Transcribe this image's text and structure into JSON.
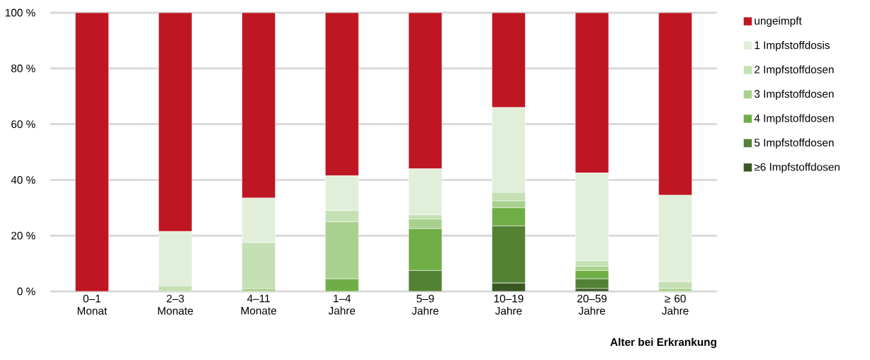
{
  "chart_data": {
    "type": "bar",
    "stacked": true,
    "xlabel": "Alter bei Erkrankung",
    "categories": [
      "0–1 Monat",
      "2–3 Monate",
      "4–11 Monate",
      "1–4 Jahre",
      "5–9 Jahre",
      "10–19 Jahre",
      "20–59 Jahre",
      "≥ 60 Jahre"
    ],
    "series": [
      {
        "name": "≥6 Impfstoffdosen",
        "color": "#385723",
        "values": [
          0,
          0,
          0,
          0,
          0,
          3,
          1,
          0
        ]
      },
      {
        "name": "5 Impfstoffdosen",
        "color": "#548235",
        "values": [
          0,
          0,
          0,
          0,
          7.5,
          20.5,
          3.5,
          0
        ]
      },
      {
        "name": "4 Impfstoffdosen",
        "color": "#70ad47",
        "values": [
          0,
          0,
          0,
          4.5,
          15,
          6.5,
          3,
          0
        ]
      },
      {
        "name": "3 Impfstoffdosen",
        "color": "#a9d18e",
        "values": [
          0,
          0,
          1,
          20.5,
          3.5,
          2.5,
          1.5,
          1
        ]
      },
      {
        "name": "2 Impfstoffdosen",
        "color": "#c5e0b4",
        "values": [
          0,
          2,
          16.5,
          4,
          1.5,
          3,
          2,
          2.5
        ]
      },
      {
        "name": "1 Impfstoffdosis",
        "color": "#e1efda",
        "values": [
          0,
          19.5,
          16,
          12.5,
          16.5,
          30.5,
          31.5,
          31
        ]
      },
      {
        "name": "ungeimpft",
        "color": "#be1622",
        "values": [
          100,
          78.5,
          66.5,
          58.5,
          56,
          34,
          57.5,
          65.5
        ]
      }
    ],
    "ylim": [
      0,
      100
    ],
    "yticks": [
      {
        "value": 0,
        "label": "0 %"
      },
      {
        "value": 20,
        "label": "20 %"
      },
      {
        "value": 40,
        "label": "40 %"
      },
      {
        "value": 60,
        "label": "60 %"
      },
      {
        "value": 80,
        "label": "80 %"
      },
      {
        "value": 100,
        "label": "100 %"
      }
    ],
    "grid": "y",
    "legend": "right"
  }
}
